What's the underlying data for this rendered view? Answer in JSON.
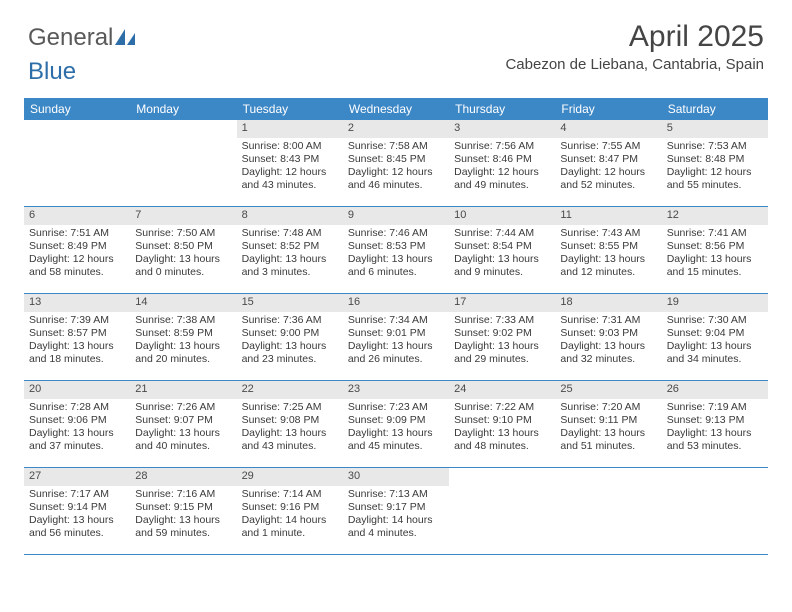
{
  "brand": {
    "part1": "General",
    "part2": "Blue"
  },
  "title": "April 2025",
  "location": "Cabezon de Liebana, Cantabria, Spain",
  "colors": {
    "header_bg": "#3c87c6",
    "header_text": "#ffffff",
    "daynum_bg": "#e8e8e8",
    "border": "#3c87c6",
    "body_text": "#3a3a3a",
    "title_text": "#454545",
    "logo_gray": "#595959",
    "logo_blue": "#2d6ea8"
  },
  "day_headers": [
    "Sunday",
    "Monday",
    "Tuesday",
    "Wednesday",
    "Thursday",
    "Friday",
    "Saturday"
  ],
  "weeks": [
    [
      {
        "empty": true
      },
      {
        "empty": true
      },
      {
        "num": "1",
        "sunrise": "Sunrise: 8:00 AM",
        "sunset": "Sunset: 8:43 PM",
        "daylight": "Daylight: 12 hours and 43 minutes."
      },
      {
        "num": "2",
        "sunrise": "Sunrise: 7:58 AM",
        "sunset": "Sunset: 8:45 PM",
        "daylight": "Daylight: 12 hours and 46 minutes."
      },
      {
        "num": "3",
        "sunrise": "Sunrise: 7:56 AM",
        "sunset": "Sunset: 8:46 PM",
        "daylight": "Daylight: 12 hours and 49 minutes."
      },
      {
        "num": "4",
        "sunrise": "Sunrise: 7:55 AM",
        "sunset": "Sunset: 8:47 PM",
        "daylight": "Daylight: 12 hours and 52 minutes."
      },
      {
        "num": "5",
        "sunrise": "Sunrise: 7:53 AM",
        "sunset": "Sunset: 8:48 PM",
        "daylight": "Daylight: 12 hours and 55 minutes."
      }
    ],
    [
      {
        "num": "6",
        "sunrise": "Sunrise: 7:51 AM",
        "sunset": "Sunset: 8:49 PM",
        "daylight": "Daylight: 12 hours and 58 minutes."
      },
      {
        "num": "7",
        "sunrise": "Sunrise: 7:50 AM",
        "sunset": "Sunset: 8:50 PM",
        "daylight": "Daylight: 13 hours and 0 minutes."
      },
      {
        "num": "8",
        "sunrise": "Sunrise: 7:48 AM",
        "sunset": "Sunset: 8:52 PM",
        "daylight": "Daylight: 13 hours and 3 minutes."
      },
      {
        "num": "9",
        "sunrise": "Sunrise: 7:46 AM",
        "sunset": "Sunset: 8:53 PM",
        "daylight": "Daylight: 13 hours and 6 minutes."
      },
      {
        "num": "10",
        "sunrise": "Sunrise: 7:44 AM",
        "sunset": "Sunset: 8:54 PM",
        "daylight": "Daylight: 13 hours and 9 minutes."
      },
      {
        "num": "11",
        "sunrise": "Sunrise: 7:43 AM",
        "sunset": "Sunset: 8:55 PM",
        "daylight": "Daylight: 13 hours and 12 minutes."
      },
      {
        "num": "12",
        "sunrise": "Sunrise: 7:41 AM",
        "sunset": "Sunset: 8:56 PM",
        "daylight": "Daylight: 13 hours and 15 minutes."
      }
    ],
    [
      {
        "num": "13",
        "sunrise": "Sunrise: 7:39 AM",
        "sunset": "Sunset: 8:57 PM",
        "daylight": "Daylight: 13 hours and 18 minutes."
      },
      {
        "num": "14",
        "sunrise": "Sunrise: 7:38 AM",
        "sunset": "Sunset: 8:59 PM",
        "daylight": "Daylight: 13 hours and 20 minutes."
      },
      {
        "num": "15",
        "sunrise": "Sunrise: 7:36 AM",
        "sunset": "Sunset: 9:00 PM",
        "daylight": "Daylight: 13 hours and 23 minutes."
      },
      {
        "num": "16",
        "sunrise": "Sunrise: 7:34 AM",
        "sunset": "Sunset: 9:01 PM",
        "daylight": "Daylight: 13 hours and 26 minutes."
      },
      {
        "num": "17",
        "sunrise": "Sunrise: 7:33 AM",
        "sunset": "Sunset: 9:02 PM",
        "daylight": "Daylight: 13 hours and 29 minutes."
      },
      {
        "num": "18",
        "sunrise": "Sunrise: 7:31 AM",
        "sunset": "Sunset: 9:03 PM",
        "daylight": "Daylight: 13 hours and 32 minutes."
      },
      {
        "num": "19",
        "sunrise": "Sunrise: 7:30 AM",
        "sunset": "Sunset: 9:04 PM",
        "daylight": "Daylight: 13 hours and 34 minutes."
      }
    ],
    [
      {
        "num": "20",
        "sunrise": "Sunrise: 7:28 AM",
        "sunset": "Sunset: 9:06 PM",
        "daylight": "Daylight: 13 hours and 37 minutes."
      },
      {
        "num": "21",
        "sunrise": "Sunrise: 7:26 AM",
        "sunset": "Sunset: 9:07 PM",
        "daylight": "Daylight: 13 hours and 40 minutes."
      },
      {
        "num": "22",
        "sunrise": "Sunrise: 7:25 AM",
        "sunset": "Sunset: 9:08 PM",
        "daylight": "Daylight: 13 hours and 43 minutes."
      },
      {
        "num": "23",
        "sunrise": "Sunrise: 7:23 AM",
        "sunset": "Sunset: 9:09 PM",
        "daylight": "Daylight: 13 hours and 45 minutes."
      },
      {
        "num": "24",
        "sunrise": "Sunrise: 7:22 AM",
        "sunset": "Sunset: 9:10 PM",
        "daylight": "Daylight: 13 hours and 48 minutes."
      },
      {
        "num": "25",
        "sunrise": "Sunrise: 7:20 AM",
        "sunset": "Sunset: 9:11 PM",
        "daylight": "Daylight: 13 hours and 51 minutes."
      },
      {
        "num": "26",
        "sunrise": "Sunrise: 7:19 AM",
        "sunset": "Sunset: 9:13 PM",
        "daylight": "Daylight: 13 hours and 53 minutes."
      }
    ],
    [
      {
        "num": "27",
        "sunrise": "Sunrise: 7:17 AM",
        "sunset": "Sunset: 9:14 PM",
        "daylight": "Daylight: 13 hours and 56 minutes."
      },
      {
        "num": "28",
        "sunrise": "Sunrise: 7:16 AM",
        "sunset": "Sunset: 9:15 PM",
        "daylight": "Daylight: 13 hours and 59 minutes."
      },
      {
        "num": "29",
        "sunrise": "Sunrise: 7:14 AM",
        "sunset": "Sunset: 9:16 PM",
        "daylight": "Daylight: 14 hours and 1 minute."
      },
      {
        "num": "30",
        "sunrise": "Sunrise: 7:13 AM",
        "sunset": "Sunset: 9:17 PM",
        "daylight": "Daylight: 14 hours and 4 minutes."
      },
      {
        "empty": true
      },
      {
        "empty": true
      },
      {
        "empty": true
      }
    ]
  ]
}
